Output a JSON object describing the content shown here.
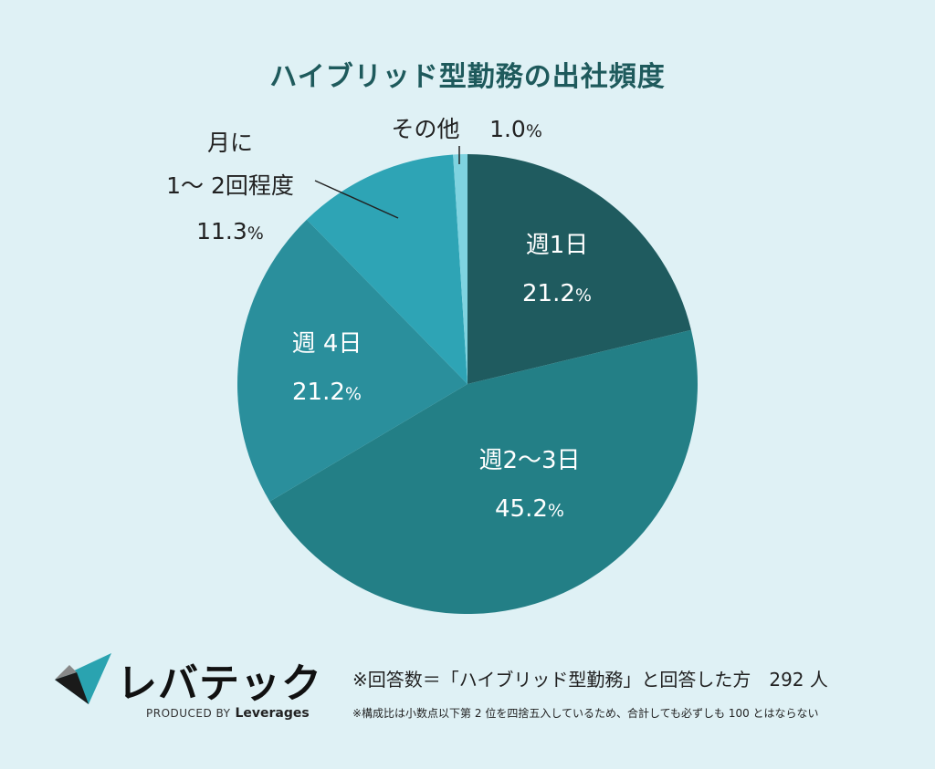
{
  "chart_data": {
    "type": "pie",
    "title": "ハイブリッド型勤務の出社頻度",
    "slices": [
      {
        "label": "週1日",
        "value": 21.2,
        "pct_text": "21.2",
        "color": "#1f5b5f"
      },
      {
        "label": "週2〜3日",
        "value": 45.2,
        "pct_text": "45.2",
        "color": "#237f86"
      },
      {
        "label": "週 4日",
        "value": 21.2,
        "pct_text": "21.2",
        "color": "#2a8f9c"
      },
      {
        "label_lines": [
          "月に",
          "1〜 2回程度"
        ],
        "value": 11.3,
        "pct_text": "11.3",
        "color": "#2ea4b5"
      },
      {
        "label": "その他",
        "value": 1.0,
        "pct_text": "1.0",
        "color": "#7fd3e0"
      }
    ],
    "percent_sign": "%",
    "start": "12 o'clock",
    "direction": "clockwise"
  },
  "footer": {
    "sample_line": "※回答数＝「ハイブリッド型勤務」と回答した方　292 人",
    "note_line": "※構成比は小数点以下第 2 位を四捨五入しているため、合計しても必ずしも 100 とはならない"
  },
  "logo": {
    "name": "レバテック",
    "produced_by": "PRODUCED BY",
    "company": "Leverages"
  },
  "colors": {
    "background": "#dff1f5",
    "title": "#1e5a5c"
  }
}
